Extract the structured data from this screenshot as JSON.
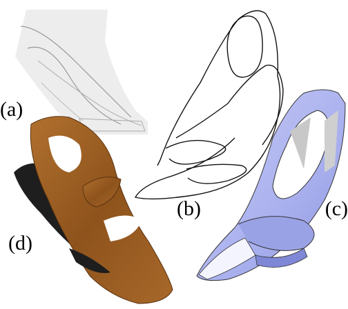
{
  "figure": {
    "labels": [
      "(a)",
      "(b)",
      "(c)",
      "(d)"
    ]
  }
}
